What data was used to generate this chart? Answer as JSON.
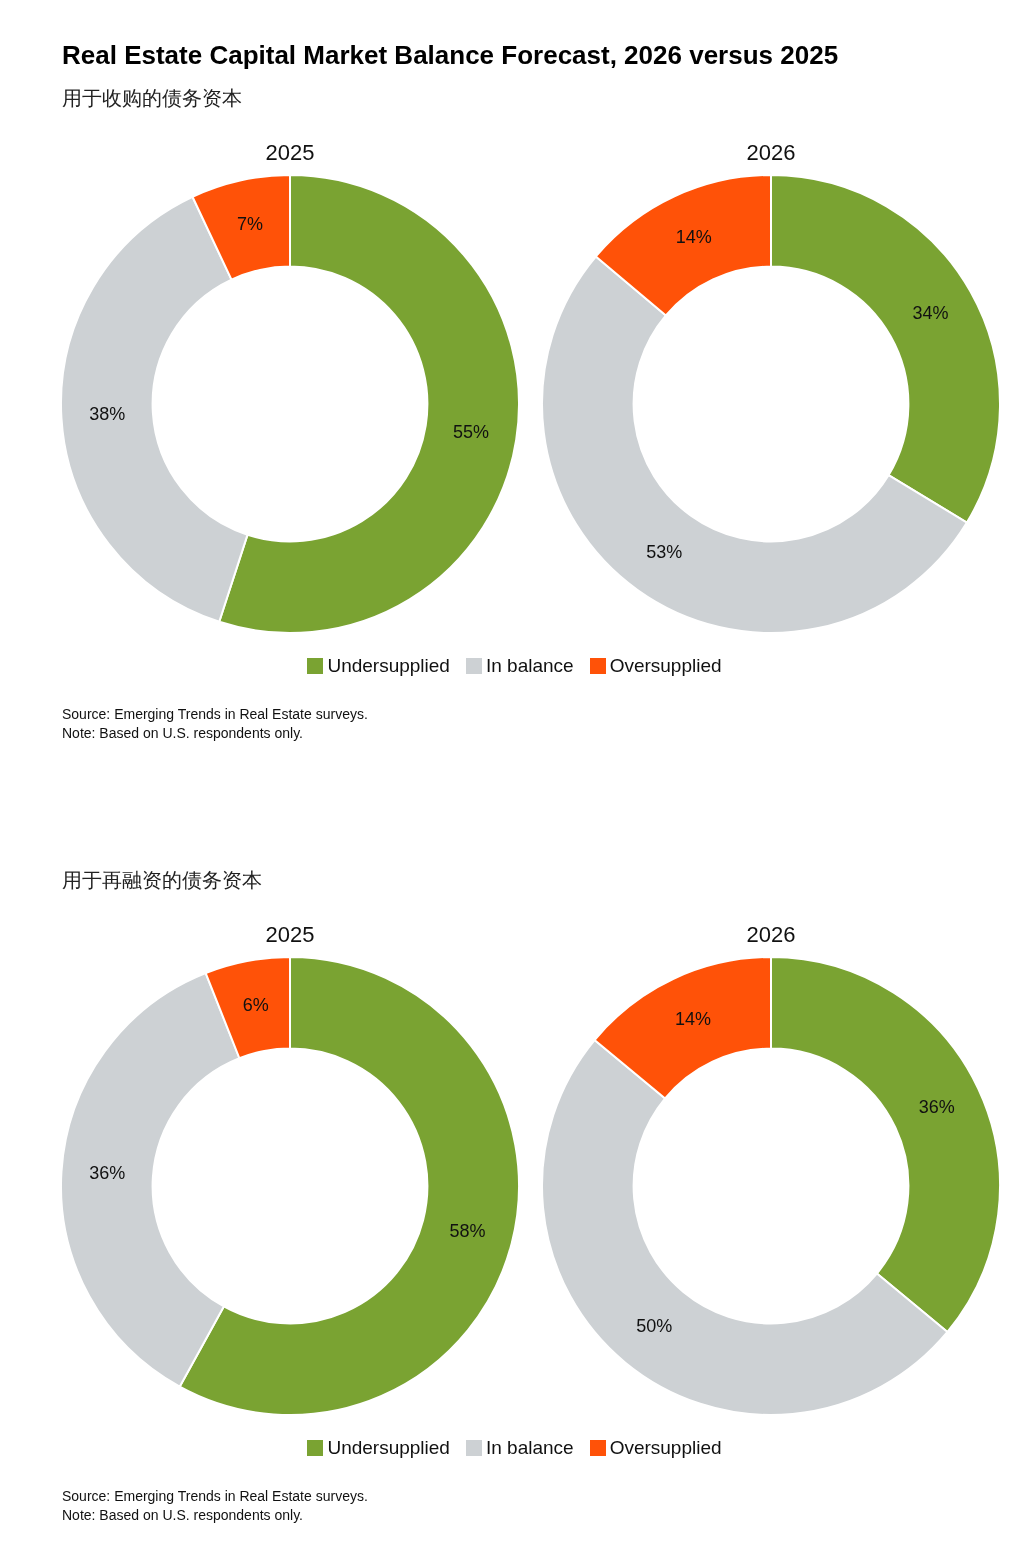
{
  "chart_data": [
    {
      "type": "donut",
      "title": "Real Estate Capital Market Balance Forecast, 2026 versus 2025",
      "subtitle": "用于收购的债务资本",
      "categories": [
        "Undersupplied",
        "In balance",
        "Oversupplied"
      ],
      "colors": [
        "#7aa332",
        "#cdd1d4",
        "#ff5208"
      ],
      "legend": "bottom",
      "data_labels": true,
      "series": [
        {
          "name": "2025",
          "values": [
            55,
            38,
            7
          ],
          "value_labels": [
            "55%",
            "38%",
            "7%"
          ]
        },
        {
          "name": "2026",
          "values": [
            34,
            53,
            14
          ],
          "value_labels": [
            "34%",
            "53%",
            "14%"
          ]
        }
      ],
      "annotations": [
        "Source: Emerging Trends in Real Estate surveys.",
        "Note: Based on U.S. respondents only."
      ]
    },
    {
      "type": "donut",
      "subtitle": "用于再融资的债务资本",
      "categories": [
        "Undersupplied",
        "In balance",
        "Oversupplied"
      ],
      "colors": [
        "#7aa332",
        "#cdd1d4",
        "#ff5208"
      ],
      "legend": "bottom",
      "data_labels": true,
      "series": [
        {
          "name": "2025",
          "values": [
            58,
            36,
            6
          ],
          "value_labels": [
            "58%",
            "36%",
            "6%"
          ]
        },
        {
          "name": "2026",
          "values": [
            36,
            50,
            14
          ],
          "value_labels": [
            "36%",
            "50%",
            "14%"
          ]
        }
      ],
      "annotations": [
        "Source: Emerging Trends in Real Estate surveys.",
        "Note: Based on U.S. respondents only."
      ]
    }
  ]
}
